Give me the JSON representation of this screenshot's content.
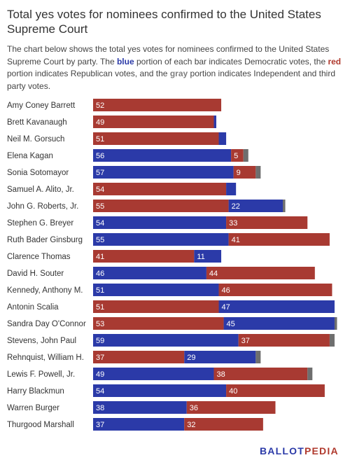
{
  "title": "Total yes votes for nominees confirmed to the United States Supreme Court",
  "description": {
    "part1": "The chart below shows the total yes votes for nominees confirmed to the United States Supreme Court by party. The ",
    "blue_word": "blue",
    "part2": " portion of each bar indicates Democratic votes, the ",
    "red_word": "red",
    "part3": " portion indicates Republican votes, and the ",
    "gray_word": "gray",
    "part4": " portion indicates Independent and third party votes."
  },
  "logo": {
    "left": "BALLOT",
    "mid": "PEDIA"
  },
  "colors": {
    "democratic": "#2b3aa8",
    "republican": "#a83a32",
    "independent": "#6e6e6e"
  },
  "chart_data": {
    "type": "bar",
    "orientation": "horizontal",
    "stacked": true,
    "title": "Total yes votes for nominees confirmed to the United States Supreme Court",
    "xlim": [
      0,
      100
    ],
    "grid": false,
    "legend": "none",
    "categories": [
      "Amy Coney Barrett",
      "Brett Kavanaugh",
      "Neil M. Gorsuch",
      "Elena Kagan",
      "Sonia Sotomayor",
      "Samuel A. Alito, Jr.",
      "John G. Roberts, Jr.",
      "Stephen G. Breyer",
      "Ruth Bader Ginsburg",
      "Clarence Thomas",
      "David H. Souter",
      "Kennedy, Anthony M.",
      "Antonin Scalia",
      "Sandra Day O'Connor",
      "Stevens, John Paul",
      "Rehnquist, William H.",
      "Lewis F. Powell, Jr.",
      "Harry Blackmun",
      "Warren Burger",
      "Thurgood Marshall"
    ],
    "series_order": [
      "Republican",
      "Democratic",
      "Independent"
    ],
    "rows": [
      {
        "segments": [
          {
            "party": "Republican",
            "value": 52,
            "label": "52"
          }
        ]
      },
      {
        "segments": [
          {
            "party": "Republican",
            "value": 49,
            "label": "49"
          },
          {
            "party": "Democratic",
            "value": 1,
            "label": ""
          }
        ]
      },
      {
        "segments": [
          {
            "party": "Republican",
            "value": 51,
            "label": "51"
          },
          {
            "party": "Democratic",
            "value": 3,
            "label": ""
          }
        ]
      },
      {
        "segments": [
          {
            "party": "Democratic",
            "value": 56,
            "label": "56"
          },
          {
            "party": "Republican",
            "value": 5,
            "label": "5"
          },
          {
            "party": "Independent",
            "value": 2,
            "label": ""
          }
        ]
      },
      {
        "segments": [
          {
            "party": "Democratic",
            "value": 57,
            "label": "57"
          },
          {
            "party": "Republican",
            "value": 9,
            "label": "9"
          },
          {
            "party": "Independent",
            "value": 2,
            "label": ""
          }
        ]
      },
      {
        "segments": [
          {
            "party": "Republican",
            "value": 54,
            "label": "54"
          },
          {
            "party": "Democratic",
            "value": 4,
            "label": ""
          }
        ]
      },
      {
        "segments": [
          {
            "party": "Republican",
            "value": 55,
            "label": "55"
          },
          {
            "party": "Democratic",
            "value": 22,
            "label": "22"
          },
          {
            "party": "Independent",
            "value": 1,
            "label": ""
          }
        ]
      },
      {
        "segments": [
          {
            "party": "Democratic",
            "value": 54,
            "label": "54"
          },
          {
            "party": "Republican",
            "value": 33,
            "label": "33"
          }
        ]
      },
      {
        "segments": [
          {
            "party": "Democratic",
            "value": 55,
            "label": "55"
          },
          {
            "party": "Republican",
            "value": 41,
            "label": "41"
          }
        ]
      },
      {
        "segments": [
          {
            "party": "Republican",
            "value": 41,
            "label": "41"
          },
          {
            "party": "Democratic",
            "value": 11,
            "label": "11"
          }
        ]
      },
      {
        "segments": [
          {
            "party": "Democratic",
            "value": 46,
            "label": "46"
          },
          {
            "party": "Republican",
            "value": 44,
            "label": "44"
          }
        ]
      },
      {
        "segments": [
          {
            "party": "Democratic",
            "value": 51,
            "label": "51"
          },
          {
            "party": "Republican",
            "value": 46,
            "label": "46"
          }
        ]
      },
      {
        "segments": [
          {
            "party": "Republican",
            "value": 51,
            "label": "51"
          },
          {
            "party": "Democratic",
            "value": 47,
            "label": "47"
          }
        ]
      },
      {
        "segments": [
          {
            "party": "Republican",
            "value": 53,
            "label": "53"
          },
          {
            "party": "Democratic",
            "value": 45,
            "label": "45"
          },
          {
            "party": "Independent",
            "value": 1,
            "label": ""
          }
        ]
      },
      {
        "segments": [
          {
            "party": "Democratic",
            "value": 59,
            "label": "59"
          },
          {
            "party": "Republican",
            "value": 37,
            "label": "37"
          },
          {
            "party": "Independent",
            "value": 2,
            "label": ""
          }
        ]
      },
      {
        "segments": [
          {
            "party": "Republican",
            "value": 37,
            "label": "37"
          },
          {
            "party": "Democratic",
            "value": 29,
            "label": "29"
          },
          {
            "party": "Independent",
            "value": 2,
            "label": ""
          }
        ]
      },
      {
        "segments": [
          {
            "party": "Democratic",
            "value": 49,
            "label": "49"
          },
          {
            "party": "Republican",
            "value": 38,
            "label": "38"
          },
          {
            "party": "Independent",
            "value": 2,
            "label": ""
          }
        ]
      },
      {
        "segments": [
          {
            "party": "Democratic",
            "value": 54,
            "label": "54"
          },
          {
            "party": "Republican",
            "value": 40,
            "label": "40"
          }
        ]
      },
      {
        "segments": [
          {
            "party": "Democratic",
            "value": 38,
            "label": "38"
          },
          {
            "party": "Republican",
            "value": 36,
            "label": "36"
          }
        ]
      },
      {
        "segments": [
          {
            "party": "Democratic",
            "value": 37,
            "label": "37"
          },
          {
            "party": "Republican",
            "value": 32,
            "label": "32"
          }
        ]
      }
    ]
  }
}
